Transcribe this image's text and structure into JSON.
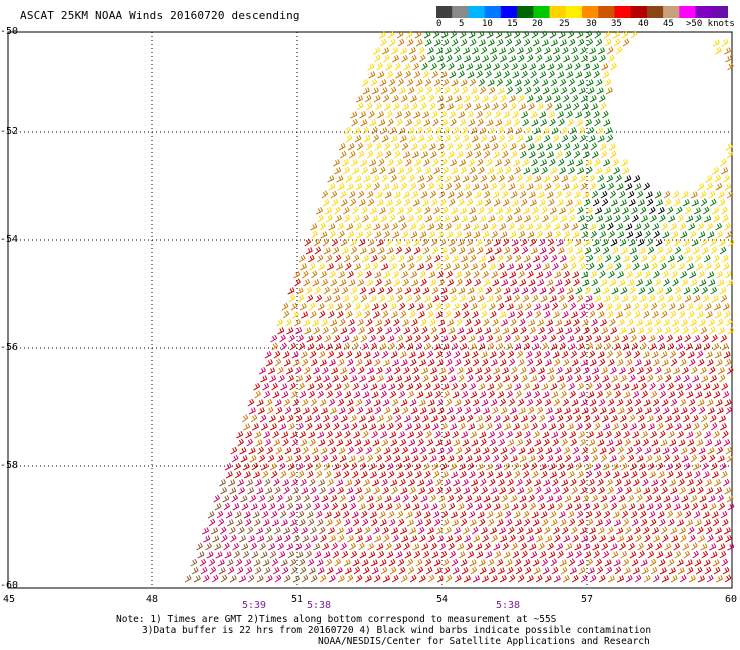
{
  "title": "ASCAT 25KM NOAA Winds 20160720 descending",
  "legend": {
    "colors": [
      "#404040",
      "#8a8a8a",
      "#00b4ff",
      "#0078ff",
      "#0000ff",
      "#006400",
      "#00c800",
      "#ffd200",
      "#ffee00",
      "#ff8c00",
      "#cc5500",
      "#ff0000",
      "#b40000",
      "#8b4513",
      "#c8a07a",
      "#ff00ff",
      "#8000c0",
      "#6a0dad"
    ],
    "labels": [
      "0",
      "5",
      "10",
      "15",
      "20",
      "25",
      "30",
      "35",
      "40",
      "45",
      ">50 knots"
    ]
  },
  "map": {
    "lat_labels": [
      "-50",
      "-52",
      "-54",
      "-56",
      "-58",
      "-60"
    ],
    "lon_labels": [
      "45",
      "48",
      "51",
      "54",
      "57",
      "60"
    ],
    "time_labels": [
      "5:39",
      "5:38",
      "5:38"
    ],
    "barb_colors": {
      "green": "#0a7a0a",
      "yellow": "#ffd700",
      "orange": "#cc7a00",
      "red": "#cc0000",
      "magenta": "#cc0066",
      "brown": "#8b5a2b",
      "black": "#000000"
    }
  },
  "notes": {
    "line1": "Note: 1) Times are GMT 2)Times along bottom correspond to measurement at ~55S",
    "line2": "3)Data buffer is 22 hrs from 20160720 4) Black wind barbs indicate possible contamination",
    "line3": "NOAA/NESDIS/Center for Satellite Applications and Research"
  }
}
